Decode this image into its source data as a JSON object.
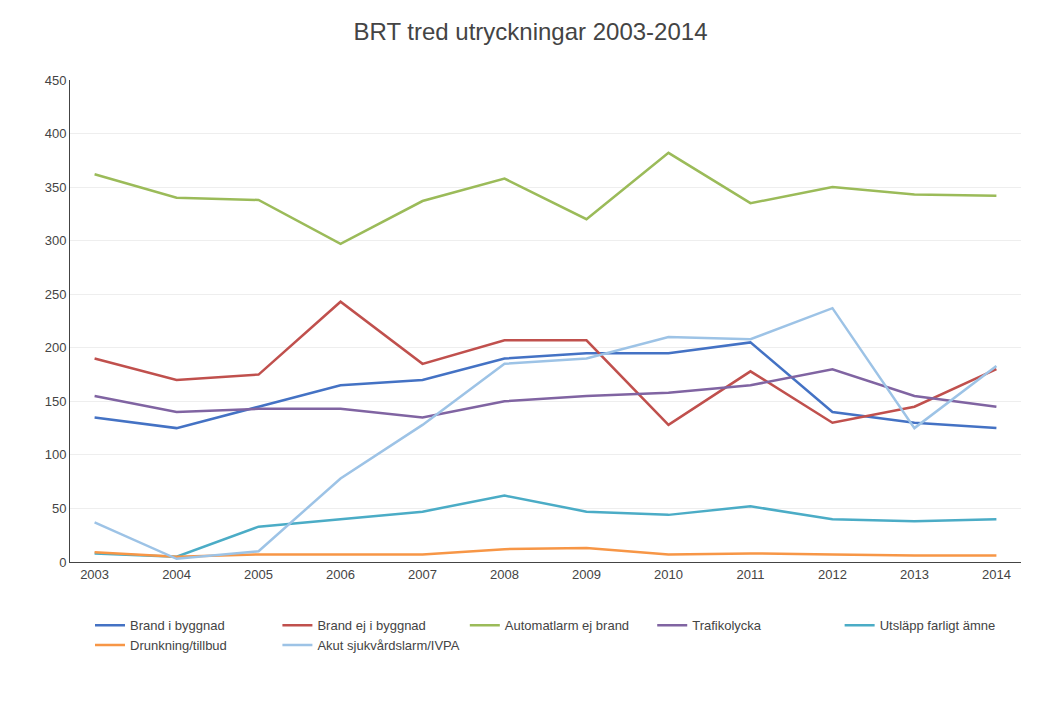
{
  "chart_data": {
    "type": "line",
    "title": "BRT tred utryckningar 2003-2014",
    "x": [
      2003,
      2004,
      2005,
      2006,
      2007,
      2008,
      2009,
      2010,
      2011,
      2012,
      2013,
      2014
    ],
    "series": [
      {
        "name": "Brand i byggnad",
        "color": "#4472C4",
        "values": [
          135,
          125,
          145,
          165,
          170,
          190,
          195,
          195,
          205,
          140,
          130,
          125
        ]
      },
      {
        "name": "Brand ej i byggnad",
        "color": "#C0504D",
        "values": [
          190,
          170,
          175,
          243,
          185,
          207,
          207,
          128,
          178,
          130,
          145,
          180
        ]
      },
      {
        "name": "Automatlarm ej brand",
        "color": "#9BBB59",
        "values": [
          362,
          340,
          338,
          297,
          337,
          358,
          320,
          382,
          335,
          350,
          343,
          342
        ]
      },
      {
        "name": "Trafikolycka",
        "color": "#8064A2",
        "values": [
          155,
          140,
          143,
          143,
          135,
          150,
          155,
          158,
          165,
          180,
          155,
          145
        ]
      },
      {
        "name": "Utsläpp farligt ämne",
        "color": "#4BACC6",
        "values": [
          8,
          5,
          33,
          40,
          47,
          62,
          47,
          44,
          52,
          40,
          38,
          40
        ]
      },
      {
        "name": "Drunkning/tillbud",
        "color": "#F79646",
        "values": [
          9,
          5,
          7,
          7,
          7,
          12,
          13,
          7,
          8,
          7,
          6,
          6
        ]
      },
      {
        "name": "Akut sjukvårdslarm/IVPA",
        "color": "#9DC3E6",
        "values": [
          37,
          3,
          10,
          78,
          128,
          185,
          190,
          210,
          208,
          237,
          125,
          183
        ]
      }
    ],
    "xlim": [
      2002.7,
      2014.3
    ],
    "xticks": [
      2003,
      2004,
      2005,
      2006,
      2007,
      2008,
      2009,
      2010,
      2011,
      2012,
      2013,
      2014
    ],
    "ylim": [
      0,
      450
    ],
    "yticks": [
      0,
      50,
      100,
      150,
      200,
      250,
      300,
      350,
      400,
      450
    ],
    "grid": true,
    "legend": "bottom"
  }
}
